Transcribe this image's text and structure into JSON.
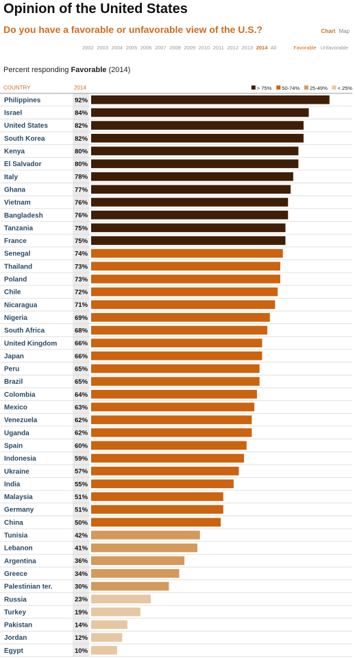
{
  "title": "Opinion of the United States",
  "subtitle": "Do you have a favorable or unfavorable view of the U.S.?",
  "view_toggle": [
    {
      "label": "Chart",
      "active": true
    },
    {
      "label": "Map",
      "active": false
    }
  ],
  "years": [
    {
      "label": "2002",
      "active": false
    },
    {
      "label": "2003",
      "active": false
    },
    {
      "label": "2004",
      "active": false
    },
    {
      "label": "2005",
      "active": false
    },
    {
      "label": "2006",
      "active": false
    },
    {
      "label": "2007",
      "active": false
    },
    {
      "label": "2008",
      "active": false
    },
    {
      "label": "2009",
      "active": false
    },
    {
      "label": "2010",
      "active": false
    },
    {
      "label": "2011",
      "active": false
    },
    {
      "label": "2012",
      "active": false
    },
    {
      "label": "2013",
      "active": false
    },
    {
      "label": "2014",
      "active": true
    },
    {
      "label": "All",
      "active": false
    }
  ],
  "response_options": [
    {
      "label": "Favorable",
      "active": true
    },
    {
      "label": "Unfavorable",
      "active": false
    }
  ],
  "description": {
    "prefix": "Percent responding ",
    "emphasis": "Favorable",
    "suffix": " (2014)"
  },
  "columns": {
    "country": "COUNTRY",
    "year": "2014"
  },
  "colors": {
    "accent": "#d06b1e",
    "row_border": "#d9d9d9",
    "value_col_bg": "#ececec",
    "country_text": "#2a4a66"
  },
  "chart_data": {
    "type": "bar",
    "orientation": "horizontal",
    "xlim": [
      0,
      100
    ],
    "grid": false,
    "legend_position": "top-right",
    "legend": [
      {
        "label": "> 75%",
        "color": "#3f1e07"
      },
      {
        "label": "50-74%",
        "color": "#cc630f"
      },
      {
        "label": "25-49%",
        "color": "#d4995b"
      },
      {
        "label": "< 25%",
        "color": "#e6c7a3"
      }
    ],
    "categories": [
      "Philippines",
      "Israel",
      "United States",
      "South Korea",
      "Kenya",
      "El Salvador",
      "Italy",
      "Ghana",
      "Vietnam",
      "Bangladesh",
      "Tanzania",
      "France",
      "Senegal",
      "Thailand",
      "Poland",
      "Chile",
      "Nicaragua",
      "Nigeria",
      "South Africa",
      "United Kingdom",
      "Japan",
      "Peru",
      "Brazil",
      "Colombia",
      "Mexico",
      "Venezuela",
      "Uganda",
      "Spain",
      "Indonesia",
      "Ukraine",
      "India",
      "Malaysia",
      "Germany",
      "China",
      "Tunisia",
      "Lebanon",
      "Argentina",
      "Greece",
      "Palestinian ter.",
      "Russia",
      "Turkey",
      "Pakistan",
      "Jordan",
      "Egypt"
    ],
    "values": [
      92,
      84,
      82,
      82,
      80,
      80,
      78,
      77,
      76,
      76,
      75,
      75,
      74,
      73,
      73,
      72,
      71,
      69,
      68,
      66,
      66,
      65,
      65,
      64,
      63,
      62,
      62,
      60,
      59,
      57,
      55,
      51,
      51,
      50,
      42,
      41,
      36,
      34,
      30,
      23,
      19,
      14,
      12,
      10
    ],
    "value_labels": [
      "92%",
      "84%",
      "82%",
      "82%",
      "80%",
      "80%",
      "78%",
      "77%",
      "76%",
      "76%",
      "75%",
      "75%",
      "74%",
      "73%",
      "73%",
      "72%",
      "71%",
      "69%",
      "68%",
      "66%",
      "66%",
      "65%",
      "65%",
      "64%",
      "63%",
      "62%",
      "62%",
      "60%",
      "59%",
      "57%",
      "55%",
      "51%",
      "51%",
      "50%",
      "42%",
      "41%",
      "36%",
      "34%",
      "30%",
      "23%",
      "19%",
      "14%",
      "12%",
      "10%"
    ],
    "bar_colors": [
      "#3f1e07",
      "#3f1e07",
      "#3f1e07",
      "#3f1e07",
      "#3f1e07",
      "#3f1e07",
      "#3f1e07",
      "#3f1e07",
      "#3f1e07",
      "#3f1e07",
      "#3f1e07",
      "#3f1e07",
      "#cc630f",
      "#cc630f",
      "#cc630f",
      "#cc630f",
      "#cc630f",
      "#cc630f",
      "#cc630f",
      "#cc630f",
      "#cc630f",
      "#cc630f",
      "#cc630f",
      "#cc630f",
      "#cc630f",
      "#cc630f",
      "#cc630f",
      "#cc630f",
      "#cc630f",
      "#cc630f",
      "#cc630f",
      "#cc630f",
      "#cc630f",
      "#cc630f",
      "#d4995b",
      "#d4995b",
      "#d4995b",
      "#d4995b",
      "#d4995b",
      "#e6c7a3",
      "#e6c7a3",
      "#e6c7a3",
      "#e6c7a3",
      "#e6c7a3"
    ]
  }
}
